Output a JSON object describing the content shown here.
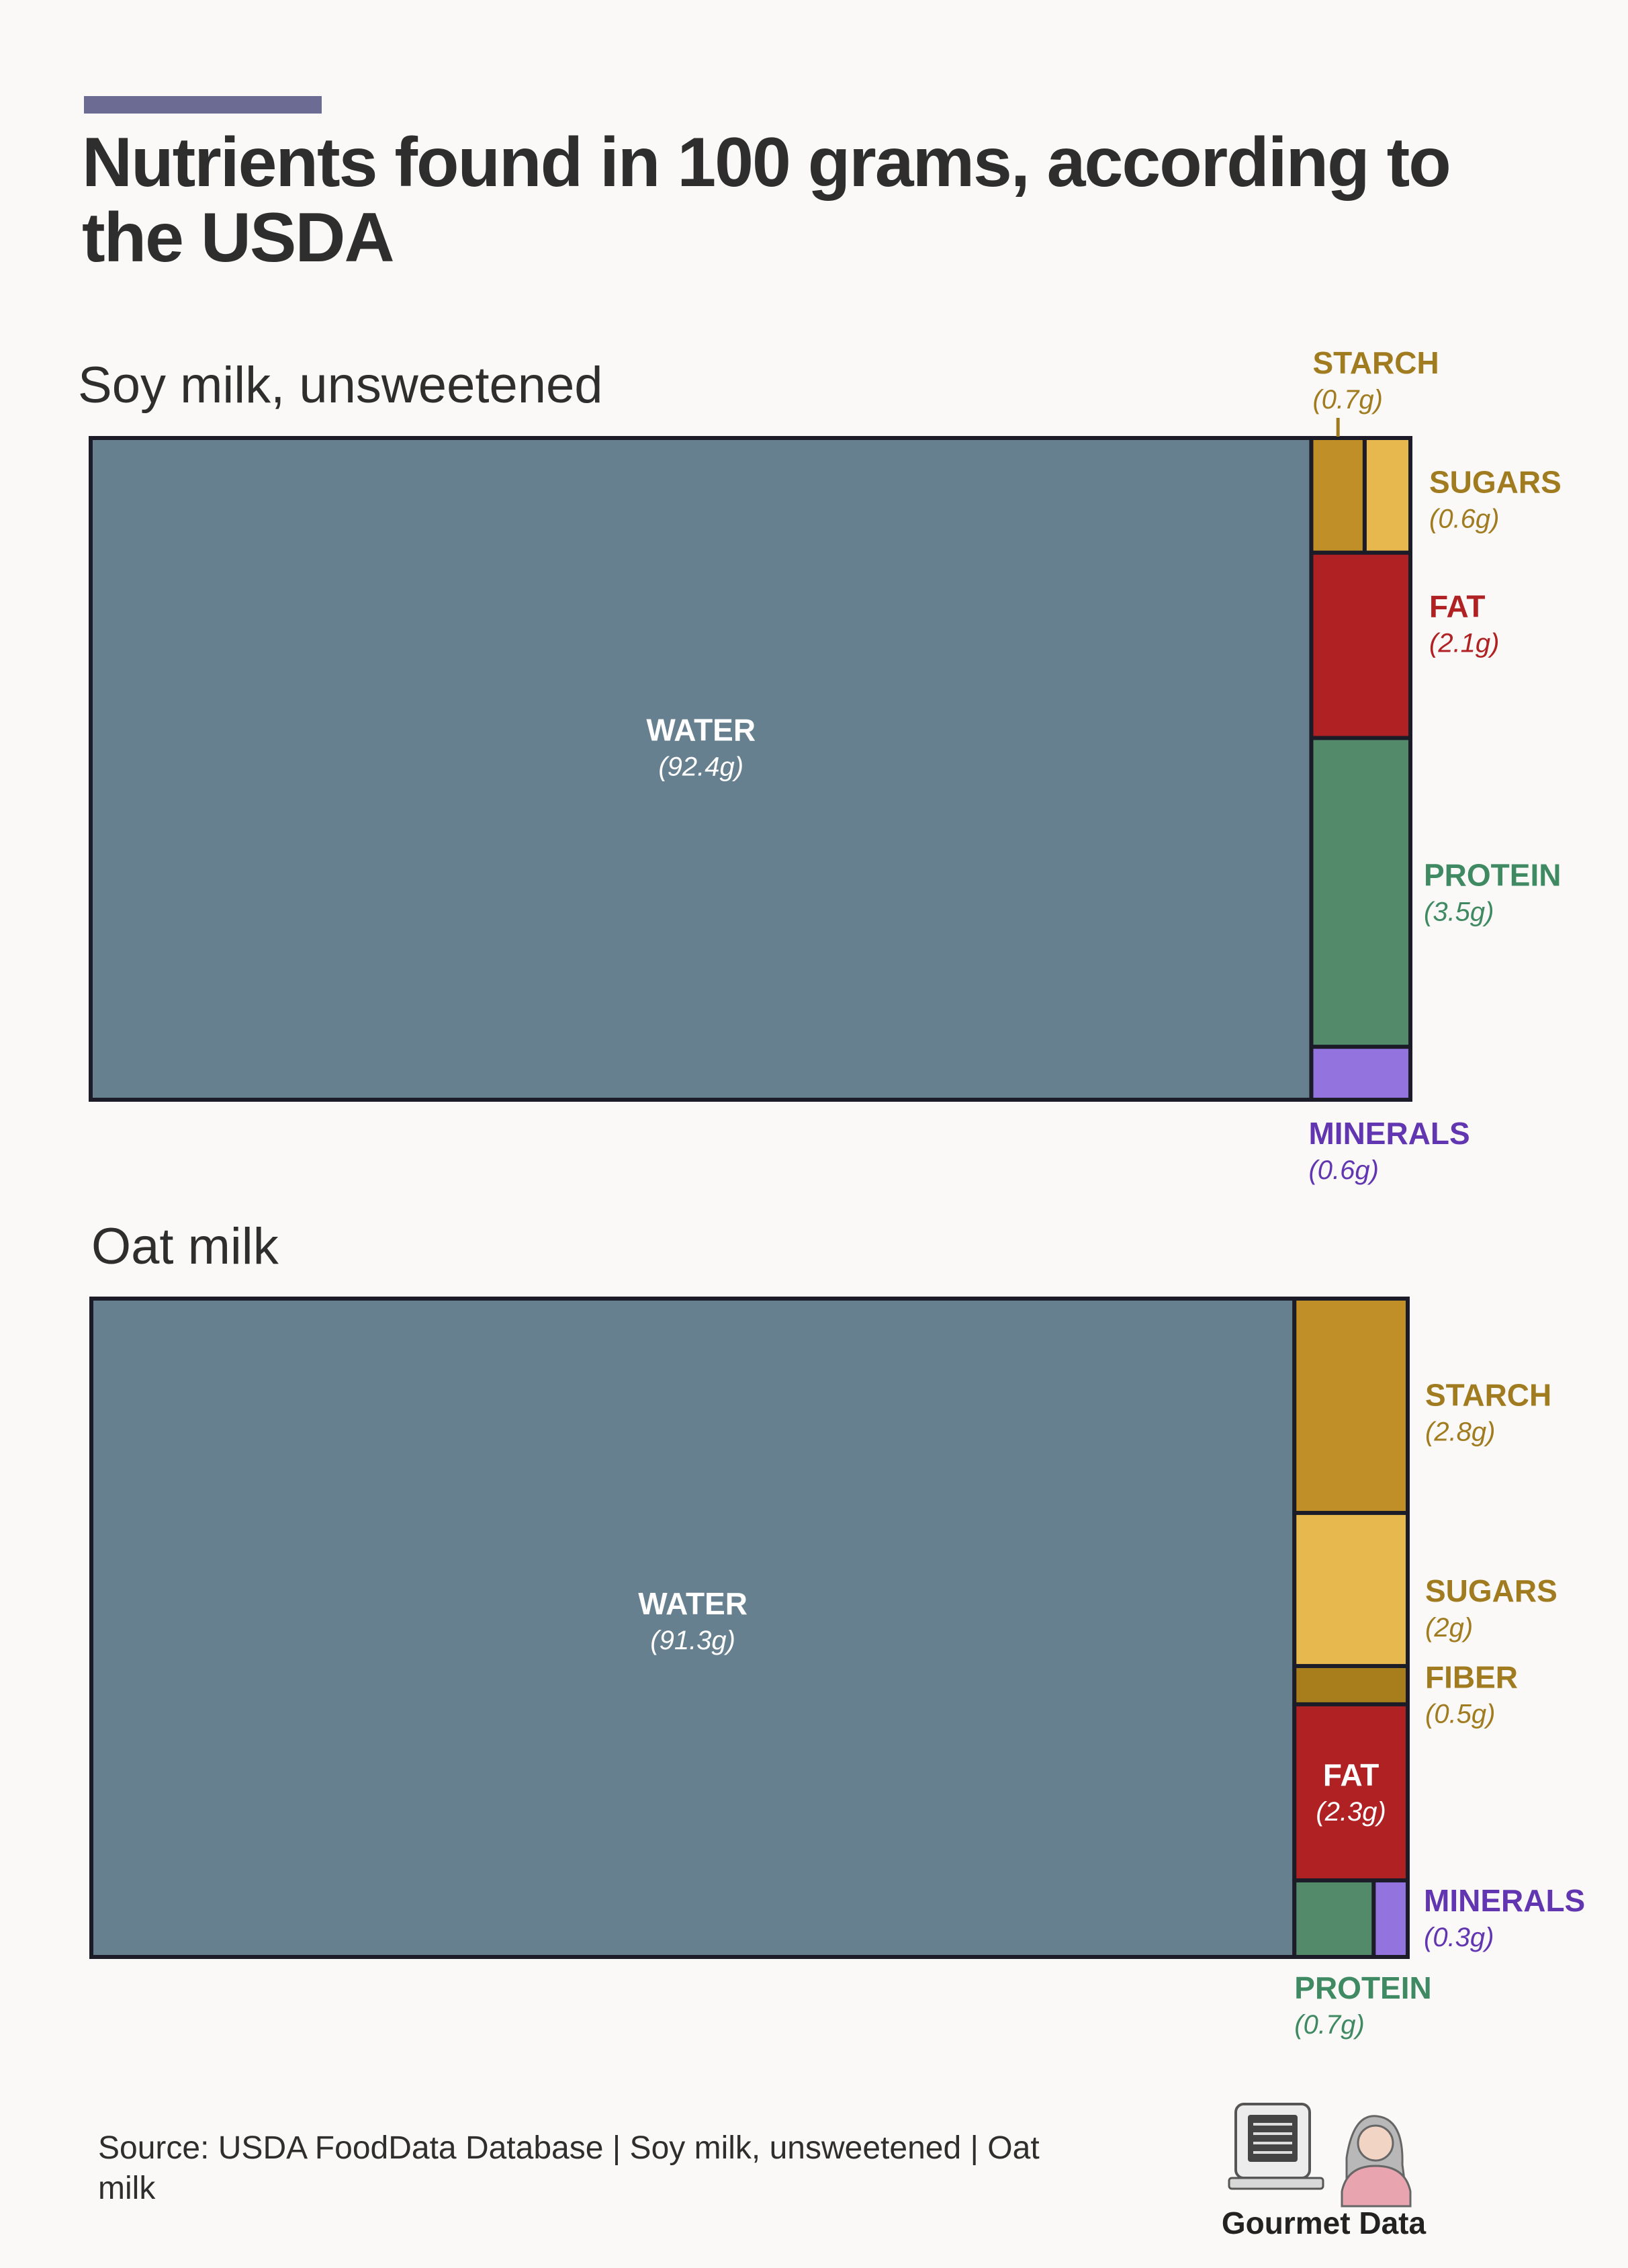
{
  "title": "Nutrients found in 100 grams, according to the USDA",
  "accent_color": "#6b6b94",
  "source": "Source: USDA FoodData Database | Soy milk, unsweetened | Oat milk",
  "brand": "Gourmet Data",
  "colors": {
    "water": "#66808f",
    "starch": "#c18f27",
    "sugars": "#e6b84e",
    "fiber": "#a87d1c",
    "fat": "#b02124",
    "protein": "#528a6a",
    "minerals": "#9373de",
    "outline": "#1c1c28",
    "label_gold": "#a17b1f",
    "label_fat": "#b02124",
    "label_protein": "#3f8a62",
    "label_minerals": "#6236b0",
    "label_water": "#ffffff"
  },
  "chart_data": [
    {
      "type": "treemap",
      "title": "Soy milk, unsweetened",
      "unit": "g",
      "categories": [
        "WATER",
        "STARCH",
        "SUGARS",
        "FAT",
        "PROTEIN",
        "MINERALS"
      ],
      "values": [
        92.4,
        0.7,
        0.6,
        2.1,
        3.5,
        0.6
      ],
      "labels": [
        "(92.4g)",
        "(0.7g)",
        "(0.6g)",
        "(2.1g)",
        "(3.5g)",
        "(0.6g)"
      ]
    },
    {
      "type": "treemap",
      "title": "Oat milk",
      "unit": "g",
      "categories": [
        "WATER",
        "STARCH",
        "SUGARS",
        "FIBER",
        "FAT",
        "PROTEIN",
        "MINERALS"
      ],
      "values": [
        91.3,
        2.8,
        2,
        0.5,
        2.3,
        0.7,
        0.3
      ],
      "labels": [
        "(91.3g)",
        "(2.8g)",
        "(2g)",
        "(0.5g)",
        "(2.3g)",
        "(0.7g)",
        "(0.3g)"
      ]
    }
  ]
}
